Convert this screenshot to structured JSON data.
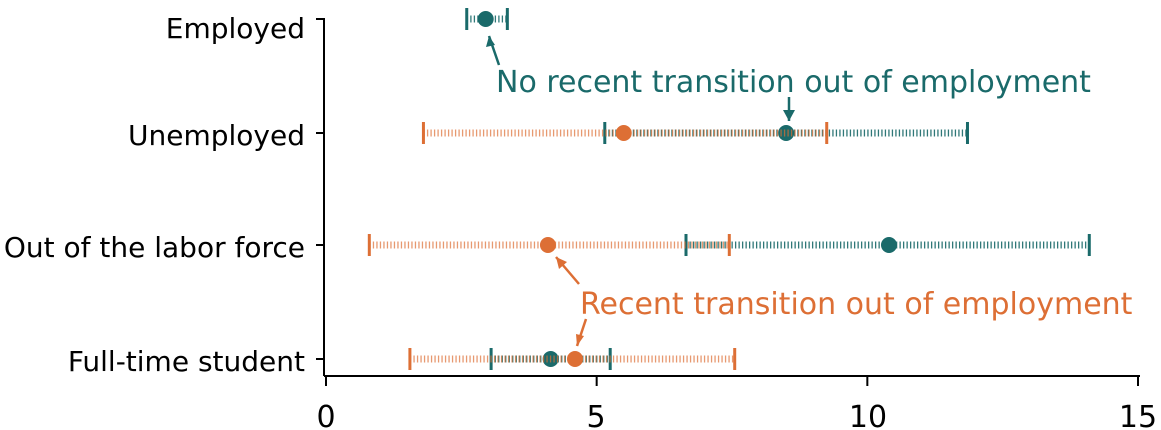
{
  "chart_data": {
    "type": "scatter",
    "orientation": "horizontal",
    "categories": [
      "Employed",
      "Unemployed",
      "Out of the labor force",
      "Full-time student"
    ],
    "xlim": [
      0,
      15
    ],
    "xticks": [
      "0",
      "5",
      "10",
      "15"
    ],
    "xlabel": "",
    "ylabel": "",
    "series": [
      {
        "color": "#1a6a6a",
        "points": [
          {
            "category": "Employed",
            "estimate": 2.95,
            "ci": [
              2.6,
              3.35
            ]
          },
          {
            "category": "Unemployed",
            "estimate": 8.5,
            "ci": [
              5.15,
              11.85
            ]
          },
          {
            "category": "Out of the labor force",
            "estimate": 10.4,
            "ci": [
              6.65,
              14.1
            ]
          },
          {
            "category": "Full-time student",
            "estimate": 4.15,
            "ci": [
              3.05,
              5.25
            ]
          }
        ]
      },
      {
        "color": "#dd6f35",
        "points": [
          {
            "category": "Unemployed",
            "estimate": 5.5,
            "ci": [
              1.8,
              9.25
            ]
          },
          {
            "category": "Out of the labor force",
            "estimate": 4.1,
            "ci": [
              0.8,
              7.45
            ]
          },
          {
            "category": "Full-time student",
            "estimate": 4.6,
            "ci": [
              1.55,
              7.55
            ]
          }
        ]
      }
    ],
    "annotations": [
      {
        "text": "No recent transition out of employment",
        "color": "#1a6a6a"
      },
      {
        "text": "Recent transition out of employment",
        "color": "#dd6f35"
      }
    ]
  }
}
